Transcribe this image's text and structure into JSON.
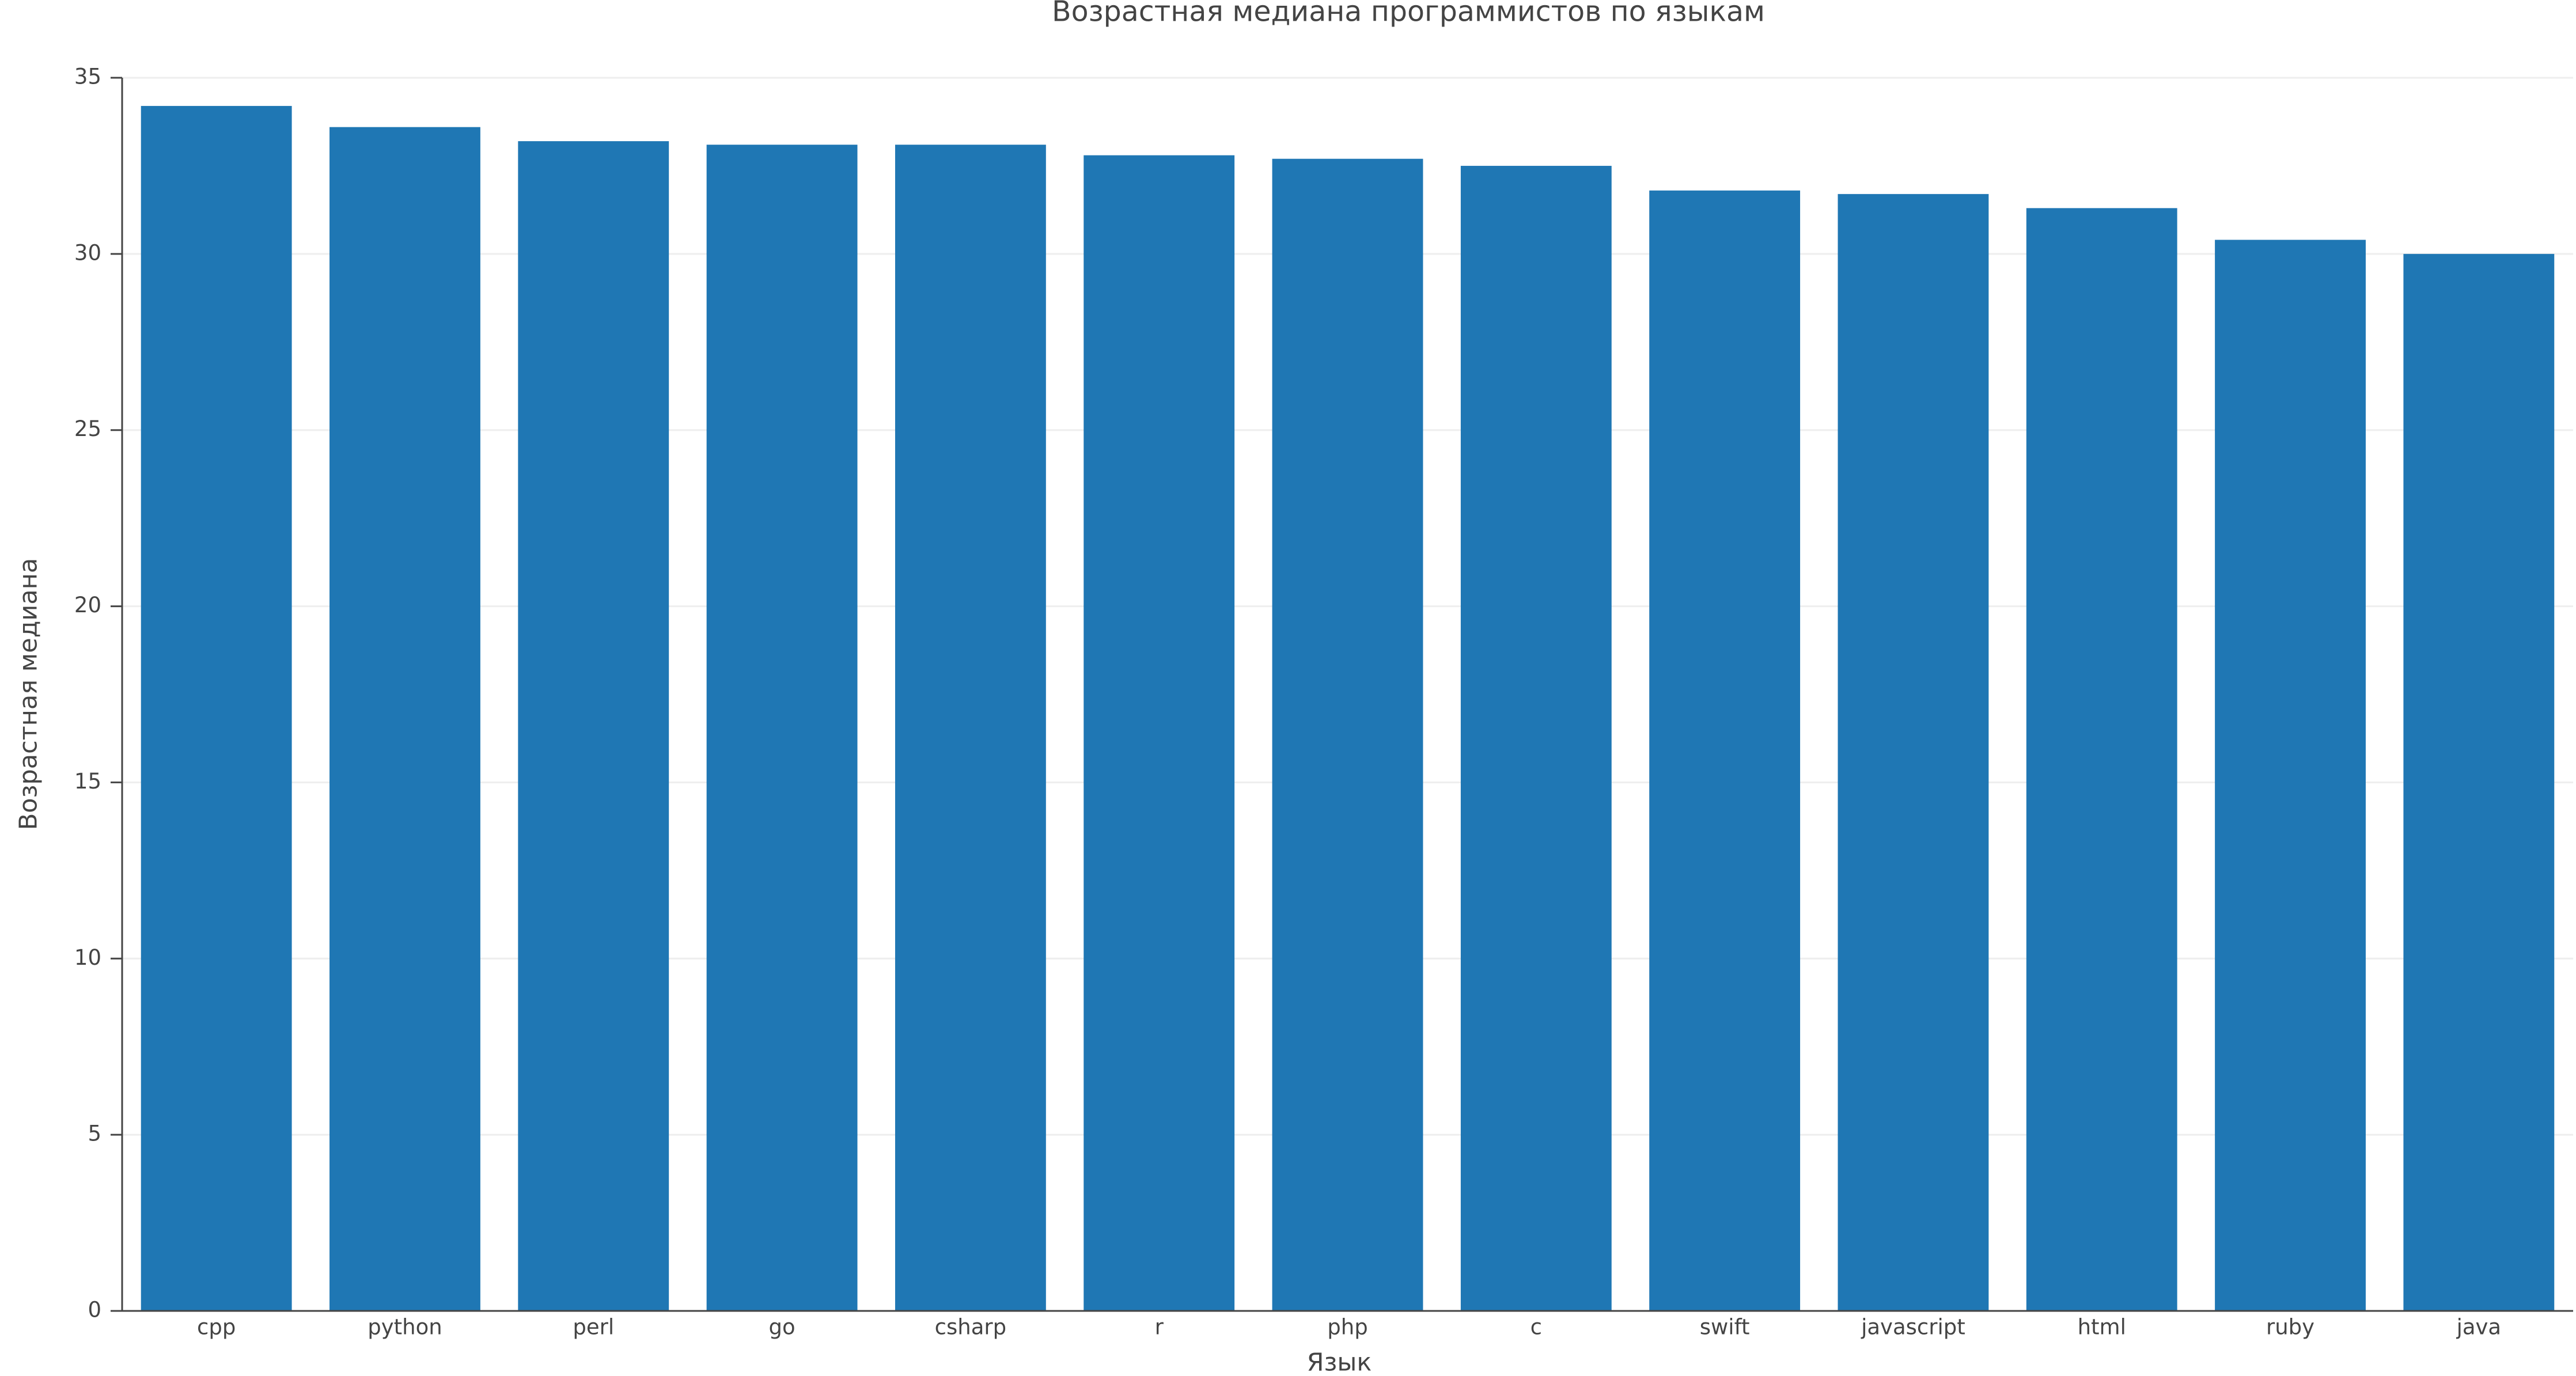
{
  "chart_data": {
    "type": "bar",
    "title": "Возрастная медиана программистов по языкам",
    "x_label": "Язык",
    "y_label": "Возрастная медиана",
    "categories": [
      "cpp",
      "python",
      "perl",
      "go",
      "csharp",
      "r",
      "php",
      "c",
      "swift",
      "javascript",
      "html",
      "ruby",
      "java"
    ],
    "values": [
      34.2,
      33.6,
      33.2,
      33.1,
      33.1,
      32.8,
      32.7,
      32.5,
      31.8,
      31.7,
      31.3,
      30.4,
      30.0
    ],
    "color": "#1f77b4",
    "ylim": [
      0,
      35
    ],
    "yticks": [
      0,
      5,
      10,
      15,
      20,
      25,
      30,
      35
    ],
    "grid": true
  }
}
